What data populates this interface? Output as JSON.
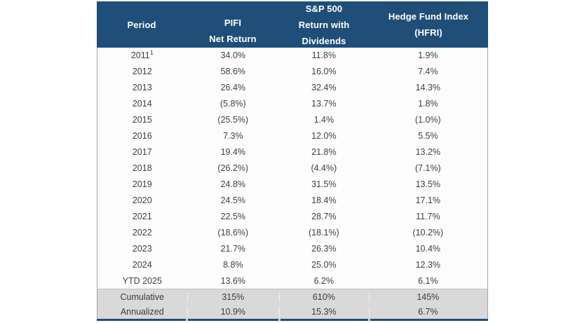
{
  "colors": {
    "header_bg": "#1F4E79",
    "header_text": "#FFFFFF",
    "body_text": "#3F3F3F",
    "summary_row_bg": "#D9D9D9",
    "bottom_border": "#1F4E79",
    "side_border": "#A3A3A3"
  },
  "table": {
    "header": [
      {
        "id": "period",
        "lines": [
          "Period"
        ]
      },
      {
        "id": "pifi",
        "lines": [
          "PIFI",
          "Net Return"
        ]
      },
      {
        "id": "sp500",
        "lines": [
          "S&P 500",
          "Return with",
          "Dividends"
        ]
      },
      {
        "id": "hfri",
        "lines": [
          "Hedge Fund Index",
          "(HFRI)"
        ]
      }
    ],
    "rows": [
      {
        "period": "2011",
        "sup": "1",
        "values": [
          "34.0%",
          "11.8%",
          "1.9%"
        ]
      },
      {
        "period": "2012",
        "values": [
          "58.6%",
          "16.0%",
          "7.4%"
        ]
      },
      {
        "period": "2013",
        "values": [
          "26.4%",
          "32.4%",
          "14.3%"
        ]
      },
      {
        "period": "2014",
        "values": [
          "(5.8%)",
          "13.7%",
          "1.8%"
        ]
      },
      {
        "period": "2015",
        "values": [
          "(25.5%)",
          "1.4%",
          "(1.0%)"
        ]
      },
      {
        "period": "2016",
        "values": [
          "7.3%",
          "12.0%",
          "5.5%"
        ]
      },
      {
        "period": "2017",
        "values": [
          "19.4%",
          "21.8%",
          "13.2%"
        ]
      },
      {
        "period": "2018",
        "values": [
          "(26.2%)",
          "(4.4%)",
          "(7.1%)"
        ]
      },
      {
        "period": "2019",
        "values": [
          "24.8%",
          "31.5%",
          "13.5%"
        ]
      },
      {
        "period": "2020",
        "values": [
          "24.5%",
          "18.4%",
          "17.1%"
        ]
      },
      {
        "period": "2021",
        "values": [
          "22.5%",
          "28.7%",
          "11.7%"
        ]
      },
      {
        "period": "2022",
        "values": [
          "(18.6%)",
          "(18.1%)",
          "(10.2%)"
        ]
      },
      {
        "period": "2023",
        "values": [
          "21.7%",
          "26.3%",
          "10.4%"
        ]
      },
      {
        "period": "2024",
        "values": [
          "8.8%",
          "25.0%",
          "12.3%"
        ]
      },
      {
        "period": "YTD 2025",
        "values": [
          "13.6%",
          "6.2%",
          "6.1%"
        ]
      }
    ],
    "summary_rows": [
      {
        "period": "Cumulative",
        "values": [
          "315%",
          "610%",
          "145%"
        ]
      },
      {
        "period": "Annualized",
        "values": [
          "10.9%",
          "15.3%",
          "6.7%"
        ]
      }
    ]
  }
}
